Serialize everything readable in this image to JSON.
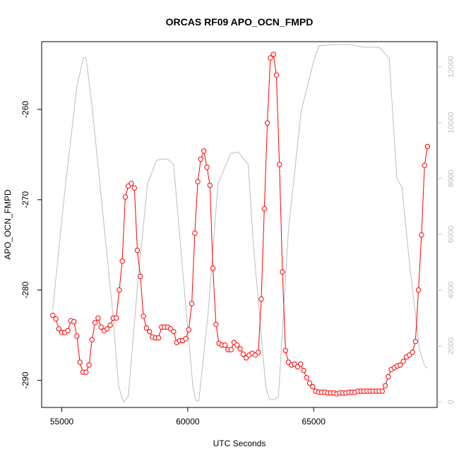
{
  "chart_data": {
    "type": "line",
    "title": "ORCAS RF09 APO_OCN_FMPD",
    "xlabel": "UTC Seconds",
    "ylabel": "APO_OCN_FMPD",
    "xlim": [
      54200,
      69900
    ],
    "ylim": [
      -293.0,
      -252.5
    ],
    "y2lim": [
      -200,
      12900
    ],
    "x_ticks": [
      55000,
      60000,
      65000
    ],
    "y_ticks": [
      -260,
      -270,
      -280,
      -290
    ],
    "y2_ticks": [
      0,
      2000,
      4000,
      6000,
      8000,
      10000,
      12000
    ],
    "grid": false,
    "legend": "none",
    "colors": {
      "series": "#ff0000",
      "secondary": "#bebebe"
    },
    "series": [
      {
        "role": "primary",
        "marker": "open-circle",
        "points": [
          [
            54640,
            -282.8
          ],
          [
            54760,
            -283.2
          ],
          [
            54880,
            -284.3
          ],
          [
            55000,
            -284.7
          ],
          [
            55120,
            -284.7
          ],
          [
            55240,
            -284.5
          ],
          [
            55360,
            -283.4
          ],
          [
            55480,
            -283.5
          ],
          [
            55600,
            -285.1
          ],
          [
            55720,
            -288.0
          ],
          [
            55840,
            -289.1
          ],
          [
            55960,
            -289.1
          ],
          [
            56080,
            -288.3
          ],
          [
            56200,
            -285.5
          ],
          [
            56320,
            -283.6
          ],
          [
            56440,
            -283.1
          ],
          [
            56560,
            -284.1
          ],
          [
            56680,
            -284.5
          ],
          [
            56800,
            -284.3
          ],
          [
            56920,
            -283.9
          ],
          [
            57040,
            -283.1
          ],
          [
            57160,
            -283.1
          ],
          [
            57280,
            -280.0
          ],
          [
            57400,
            -276.8
          ],
          [
            57520,
            -269.7
          ],
          [
            57640,
            -268.5
          ],
          [
            57760,
            -268.2
          ],
          [
            57880,
            -268.7
          ],
          [
            58000,
            -275.6
          ],
          [
            58120,
            -278.5
          ],
          [
            58240,
            -282.9
          ],
          [
            58360,
            -284.2
          ],
          [
            58480,
            -284.6
          ],
          [
            58600,
            -285.2
          ],
          [
            58720,
            -285.3
          ],
          [
            58840,
            -285.3
          ],
          [
            58960,
            -284.1
          ],
          [
            59080,
            -284.1
          ],
          [
            59200,
            -284.1
          ],
          [
            59320,
            -284.3
          ],
          [
            59440,
            -284.6
          ],
          [
            59560,
            -285.8
          ],
          [
            59680,
            -285.6
          ],
          [
            59800,
            -285.6
          ],
          [
            59920,
            -285.4
          ],
          [
            60040,
            -284.4
          ],
          [
            60160,
            -281.5
          ],
          [
            60280,
            -273.7
          ],
          [
            60400,
            -268.0
          ],
          [
            60520,
            -265.5
          ],
          [
            60640,
            -264.6
          ],
          [
            60760,
            -266.4
          ],
          [
            60880,
            -268.4
          ],
          [
            61000,
            -277.6
          ],
          [
            61120,
            -283.8
          ],
          [
            61240,
            -285.9
          ],
          [
            61360,
            -286.1
          ],
          [
            61480,
            -286.1
          ],
          [
            61600,
            -286.6
          ],
          [
            61720,
            -286.6
          ],
          [
            61840,
            -285.8
          ],
          [
            61960,
            -286.1
          ],
          [
            62080,
            -286.5
          ],
          [
            62200,
            -287.1
          ],
          [
            62320,
            -287.5
          ],
          [
            62440,
            -287.2
          ],
          [
            62560,
            -287.0
          ],
          [
            62680,
            -287.2
          ],
          [
            62800,
            -286.9
          ],
          [
            62920,
            -281.0
          ],
          [
            63040,
            -271.0
          ],
          [
            63160,
            -261.5
          ],
          [
            63280,
            -254.3
          ],
          [
            63400,
            -253.9
          ],
          [
            63520,
            -256.2
          ],
          [
            63640,
            -266.1
          ],
          [
            63760,
            -278.0
          ],
          [
            63880,
            -286.7
          ],
          [
            64000,
            -288.0
          ],
          [
            64120,
            -288.3
          ],
          [
            64240,
            -288.2
          ],
          [
            64360,
            -288.5
          ],
          [
            64480,
            -288.2
          ],
          [
            64600,
            -288.9
          ],
          [
            64720,
            -289.7
          ],
          [
            64840,
            -290.3
          ],
          [
            64960,
            -290.7
          ],
          [
            65080,
            -291.2
          ],
          [
            65200,
            -291.3
          ],
          [
            65320,
            -291.3
          ],
          [
            65440,
            -291.3
          ],
          [
            65560,
            -291.4
          ],
          [
            65680,
            -291.4
          ],
          [
            65800,
            -291.4
          ],
          [
            65920,
            -291.5
          ],
          [
            66040,
            -291.4
          ],
          [
            66160,
            -291.4
          ],
          [
            66280,
            -291.4
          ],
          [
            66400,
            -291.3
          ],
          [
            66520,
            -291.3
          ],
          [
            66640,
            -291.3
          ],
          [
            66760,
            -291.2
          ],
          [
            66880,
            -291.2
          ],
          [
            67000,
            -291.2
          ],
          [
            67120,
            -291.2
          ],
          [
            67240,
            -291.2
          ],
          [
            67360,
            -291.2
          ],
          [
            67480,
            -291.2
          ],
          [
            67600,
            -291.2
          ],
          [
            67720,
            -291.2
          ],
          [
            67840,
            -290.6
          ],
          [
            67960,
            -289.6
          ],
          [
            68080,
            -288.8
          ],
          [
            68200,
            -288.6
          ],
          [
            68320,
            -288.4
          ],
          [
            68440,
            -288.3
          ],
          [
            68560,
            -287.9
          ],
          [
            68680,
            -287.4
          ],
          [
            68800,
            -287.2
          ],
          [
            68920,
            -286.9
          ],
          [
            69040,
            -285.7
          ],
          [
            69160,
            -280.0
          ],
          [
            69280,
            -273.9
          ],
          [
            69400,
            -266.2
          ],
          [
            69520,
            -264.1
          ]
        ]
      },
      {
        "role": "secondary-axis",
        "marker": "none",
        "points": [
          [
            54640,
            3300
          ],
          [
            55100,
            7400
          ],
          [
            55600,
            11300
          ],
          [
            55860,
            12330
          ],
          [
            55960,
            12330
          ],
          [
            56200,
            10600
          ],
          [
            56600,
            7000
          ],
          [
            57000,
            3400
          ],
          [
            57250,
            600
          ],
          [
            57400,
            100
          ],
          [
            57480,
            0
          ],
          [
            57640,
            200
          ],
          [
            58000,
            4100
          ],
          [
            58400,
            7800
          ],
          [
            58760,
            8650
          ],
          [
            59000,
            8700
          ],
          [
            59200,
            8700
          ],
          [
            59440,
            8500
          ],
          [
            59800,
            4700
          ],
          [
            60200,
            600
          ],
          [
            60320,
            30
          ],
          [
            60440,
            30
          ],
          [
            60800,
            3100
          ],
          [
            61200,
            7800
          ],
          [
            61700,
            8900
          ],
          [
            62000,
            8950
          ],
          [
            62400,
            8500
          ],
          [
            62600,
            5700
          ],
          [
            63100,
            500
          ],
          [
            63250,
            80
          ],
          [
            63440,
            80
          ],
          [
            63600,
            200
          ],
          [
            64000,
            6200
          ],
          [
            64500,
            10400
          ],
          [
            65000,
            12200
          ],
          [
            65200,
            12750
          ],
          [
            65800,
            12800
          ],
          [
            66400,
            12800
          ],
          [
            67000,
            12700
          ],
          [
            67600,
            12700
          ],
          [
            68000,
            12300
          ],
          [
            68300,
            8000
          ],
          [
            68500,
            7700
          ],
          [
            68800,
            5000
          ],
          [
            69200,
            1900
          ],
          [
            69400,
            1300
          ],
          [
            69520,
            1200
          ]
        ]
      }
    ]
  }
}
